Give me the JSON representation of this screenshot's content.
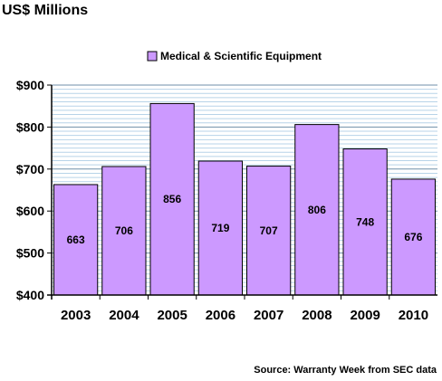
{
  "chart_data": {
    "type": "bar",
    "title": "US$ Millions",
    "categories": [
      "2003",
      "2004",
      "2005",
      "2006",
      "2007",
      "2008",
      "2009",
      "2010"
    ],
    "series": [
      {
        "name": "Medical & Scientific Equipment",
        "values": [
          663,
          706,
          856,
          719,
          707,
          806,
          748,
          676
        ],
        "color": "#cc99ff"
      }
    ],
    "data_labels": [
      "663",
      "706",
      "856",
      "719",
      "707",
      "806",
      "748",
      "676"
    ],
    "ylim": [
      400,
      900
    ],
    "y_ticks": [
      400,
      500,
      600,
      700,
      800,
      900
    ],
    "y_tick_labels": [
      "$400",
      "$500",
      "$600",
      "$700",
      "$800",
      "$900"
    ],
    "grid": true,
    "legend_position": "top-center",
    "source": "Source: Warranty Week from SEC data"
  }
}
